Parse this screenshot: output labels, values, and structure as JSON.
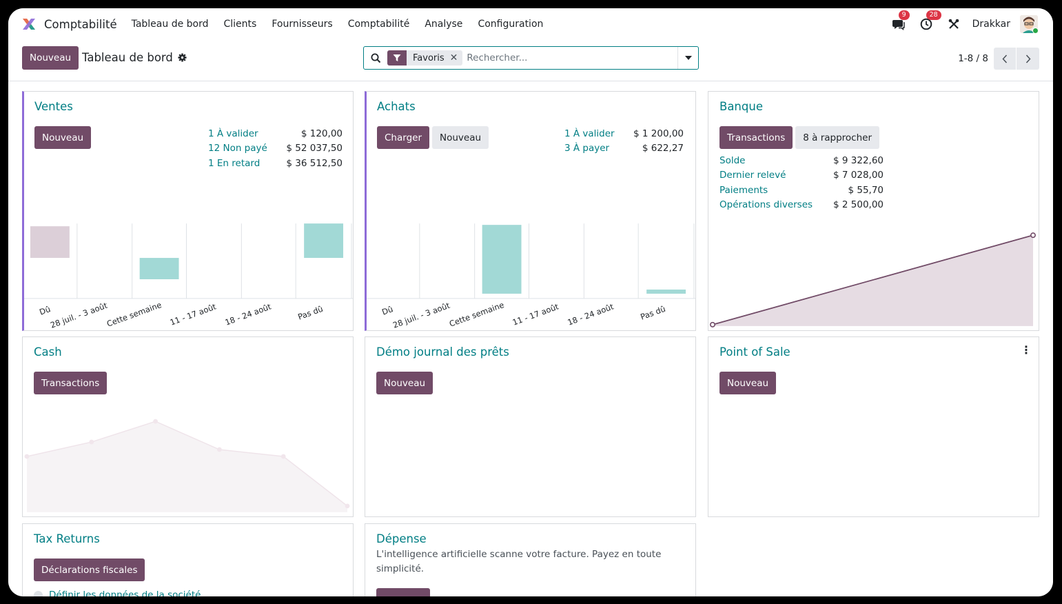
{
  "navbar": {
    "app_name": "Comptabilité",
    "menu": [
      "Tableau de bord",
      "Clients",
      "Fournisseurs",
      "Comptabilité",
      "Analyse",
      "Configuration"
    ],
    "messages_badge": "9",
    "activities_badge": "28",
    "user_name": "Drakkar"
  },
  "control_panel": {
    "new_label": "Nouveau",
    "title": "Tableau de bord",
    "search_facet": "Favoris",
    "search_placeholder": "Rechercher...",
    "pager": "1-8 / 8"
  },
  "cards": {
    "ventes": {
      "title": "Ventes",
      "new_label": "Nouveau",
      "stats": [
        {
          "label": "1 À valider",
          "value": "$ 120,00"
        },
        {
          "label": "12 Non payé",
          "value": "$ 52 037,50"
        },
        {
          "label": "1 En retard",
          "value": "$ 36 512,50"
        }
      ],
      "chart_labels": [
        "Dû",
        "28 juil. - 3 août",
        "Cette semaine",
        "11 - 17 août",
        "18 - 24 août",
        "Pas dû"
      ]
    },
    "achats": {
      "title": "Achats",
      "upload_label": "Charger",
      "new_label": "Nouveau",
      "stats": [
        {
          "label": "1 À valider",
          "value": "$ 1 200,00"
        },
        {
          "label": "3 À payer",
          "value": "$ 622,27"
        }
      ],
      "chart_labels": [
        "Dû",
        "28 juil. - 3 août",
        "Cette semaine",
        "11 - 17 août",
        "18 - 24 août",
        "Pas dû"
      ]
    },
    "banque": {
      "title": "Banque",
      "transactions_label": "Transactions",
      "reconcile_label": "8 à rapprocher",
      "stats": [
        {
          "label": "Solde",
          "value": "$ 9 322,60"
        },
        {
          "label": "Dernier relevé",
          "value": "$ 7 028,00"
        },
        {
          "label": "Paiements",
          "value": "$ 55,70"
        },
        {
          "label": "Opérations diverses",
          "value": "$ 2 500,00"
        }
      ]
    },
    "cash": {
      "title": "Cash",
      "transactions_label": "Transactions"
    },
    "loans": {
      "title": "Démo journal des prêts",
      "new_label": "Nouveau"
    },
    "pos": {
      "title": "Point of Sale",
      "new_label": "Nouveau"
    },
    "tax": {
      "title": "Tax Returns",
      "button_label": "Déclarations fiscales",
      "setup_link": "Définir les données de la société"
    },
    "depense": {
      "title": "Dépense",
      "description": "L'intelligence artificielle scanne votre facture. Payez en toute simplicité."
    }
  },
  "colors": {
    "primary": "#714b67",
    "link": "#017e84",
    "positive_bar": "#a2d9d6",
    "negative_bar": "#dccfd8",
    "accent_border": "#8e6cd8"
  }
}
